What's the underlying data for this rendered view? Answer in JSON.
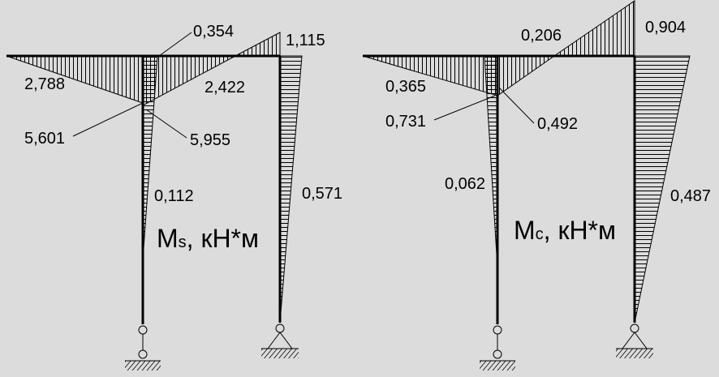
{
  "diagrams": [
    {
      "title": {
        "symbol": "M",
        "subscript": "s",
        "unit": ", кН*м"
      },
      "labels": [
        "0,354",
        "1,115",
        "2,788",
        "2,422",
        "5,601",
        "5,955",
        "0,112",
        "0,571"
      ]
    },
    {
      "title": {
        "symbol": "M",
        "subscript": "c",
        "unit": ", кН*м"
      },
      "labels": [
        "0,206",
        "0,904",
        "0,365",
        "0,731",
        "0,492",
        "0,062",
        "0,487"
      ]
    }
  ]
}
